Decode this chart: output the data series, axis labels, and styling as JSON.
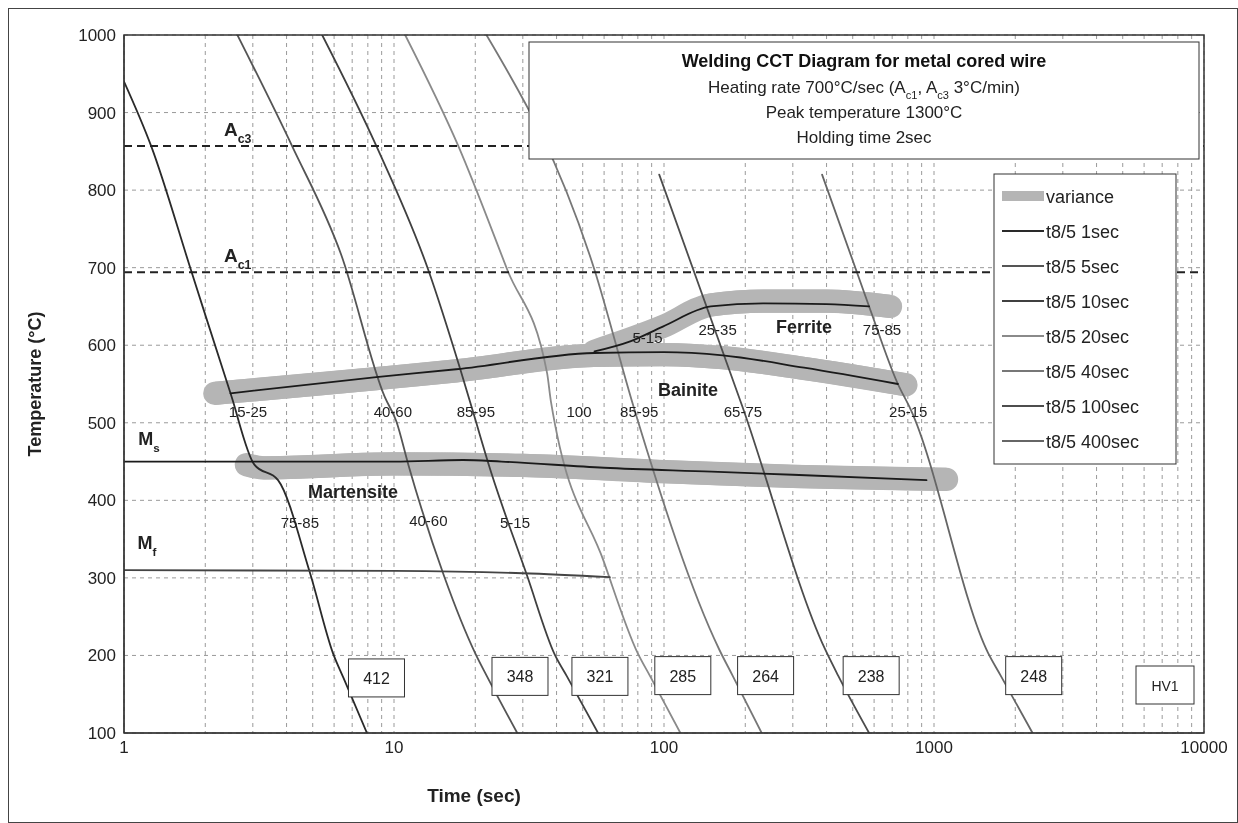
{
  "chart_data": {
    "type": "line",
    "title": "Welding CCT Diagram for metal cored wire",
    "subtitle": "Heating rate 700°C/sec (A$_{c1}$, A$_{c3}$ 3°C/min)\nPeak temperature 1300°C\nHolding time 2sec",
    "xlabel": "Time (sec)",
    "ylabel": "Temperature (°C)",
    "log": "x",
    "xlim": [
      1,
      10000
    ],
    "ylim": [
      100,
      1000
    ],
    "xticks": [
      1,
      {
        "value": 2,
        "label": null
      },
      {
        "value": 3,
        "label": null
      },
      {
        "value": 4,
        "label": null
      },
      {
        "value": 5,
        "label": null
      },
      {
        "value": 6,
        "label": null
      },
      {
        "value": 7,
        "label": null
      },
      {
        "value": 8,
        "label": null
      },
      {
        "value": 9,
        "label": null
      },
      10,
      {
        "value": 20,
        "label": null
      },
      {
        "value": 30,
        "label": null
      },
      {
        "value": 40,
        "label": null
      },
      {
        "value": 50,
        "label": null
      },
      {
        "value": 60,
        "label": null
      },
      {
        "value": 70,
        "label": null
      },
      {
        "value": 80,
        "label": null
      },
      {
        "value": 90,
        "label": null
      },
      100,
      {
        "value": 200,
        "label": null
      },
      {
        "value": 300,
        "label": null
      },
      {
        "value": 400,
        "label": null
      },
      {
        "value": 500,
        "label": null
      },
      {
        "value": 600,
        "label": null
      },
      {
        "value": 700,
        "label": null
      },
      {
        "value": 800,
        "label": null
      },
      {
        "value": 900,
        "label": null
      },
      1000,
      {
        "value": 2000,
        "label": null
      },
      {
        "value": 3000,
        "label": null
      },
      {
        "value": 4000,
        "label": null
      },
      {
        "value": 5000,
        "label": null
      },
      {
        "value": 6000,
        "label": null
      },
      {
        "value": 7000,
        "label": null
      },
      {
        "value": 8000,
        "label": null
      },
      {
        "value": 9000,
        "label": null
      },
      10000
    ],
    "yticks": [
      100,
      200,
      300,
      400,
      500,
      600,
      700,
      800,
      900,
      1000
    ],
    "grid": true,
    "legend": "top right",
    "series": [
      {
        "name": "variance",
        "color": "#b5b5b5",
        "x": [
          55,
          99,
          149,
          233,
          400,
          690,
          null,
          2.17,
          8.6,
          17,
          55,
          100,
          165,
          330,
          787,
          null,
          2.84,
          3.3,
          10,
          30,
          100,
          300,
          1113
        ],
        "values": [
          592,
          624,
          652,
          657,
          657,
          650,
          null,
          538,
          557,
          567,
          587,
          588,
          584,
          570,
          549,
          null,
          446,
          442,
          447,
          445,
          437,
          431,
          427
        ],
        "lower": [
          577,
          609,
          637,
          642,
          642,
          635,
          null,
          523,
          542,
          552,
          572,
          573,
          569,
          555,
          534,
          null,
          431,
          427,
          432,
          430,
          422,
          416,
          412
        ],
        "upper": [
          607,
          639,
          667,
          672,
          672,
          665,
          null,
          553,
          572,
          582,
          602,
          603,
          599,
          585,
          564,
          null,
          461,
          457,
          462,
          460,
          452,
          446,
          442
        ]
      },
      {
        "name": "t8/5 1sec",
        "color": "#2a2a2a",
        "x": [
          1,
          1.26,
          1.77,
          2.48,
          3.04,
          3.72,
          4.87,
          5.97,
          6.5,
          7.94
        ],
        "values": [
          940,
          857,
          697,
          538,
          446,
          426,
          308,
          201,
          171,
          100
        ]
      },
      {
        "name": "t8/5 5sec",
        "color": "#555555",
        "x": [
          2.63,
          4.19,
          6.37,
          9.25,
          10.2,
          11.3,
          15.3,
          20.1,
          22.1,
          28.6
        ],
        "values": [
          1000,
          857,
          717,
          533,
          502,
          446,
          303,
          201,
          173,
          100
        ]
      },
      {
        "name": "t8/5 10sec",
        "color": "#404040",
        "x": [
          5.42,
          8.6,
          13.4,
          17.6,
          20.1,
          22.2,
          31.1,
          39.4,
          43.7,
          57
        ],
        "values": [
          1000,
          857,
          697,
          569,
          502,
          451,
          303,
          201,
          173,
          100
        ]
      },
      {
        "name": "t8/5 20sec",
        "color": "#8a8a8a",
        "x": [
          11,
          17.3,
          26.3,
          36.9,
          38.1,
          60,
          79.9,
          88.6,
          115
        ],
        "values": [
          1000,
          857,
          697,
          564,
          528,
          320,
          203,
          174,
          100
        ]
      },
      {
        "name": "t8/5 40sec",
        "color": "#777777",
        "x": [
          22,
          55.3,
          77.4,
          160,
          179.5,
          230
        ],
        "values": [
          1000,
          697,
          519,
          208,
          174,
          100
        ]
      },
      {
        "name": "t8/5 100sec",
        "color": "#4d4d4d",
        "x": [
          96,
          196,
          395,
          441.6,
          575
        ],
        "values": [
          820,
          519,
          208,
          174,
          100
        ]
      },
      {
        "name": "t8/5 400sec",
        "color": "#666666",
        "x": [
          385,
          575,
          735,
          820,
          1587,
          1766,
          2318
        ],
        "values": [
          820,
          650,
          550,
          517,
          203,
          174,
          100
        ]
      },
      {
        "color": "#1a1a1a",
        "x": [
          55.3,
          75,
          99,
          149,
          233,
          400,
          575
        ],
        "values": [
          592,
          605,
          624,
          650,
          654,
          653,
          650
        ]
      },
      {
        "color": "#1a1a1a",
        "x": [
          2.48,
          8.6,
          17,
          55.3,
          100,
          165,
          330,
          735
        ],
        "values": [
          538,
          559,
          569,
          590,
          591,
          587,
          571,
          550
        ]
      },
      {
        "color": "#1a1a1a",
        "x": [
          1,
          3.04,
          10,
          18,
          25,
          60,
          150,
          300,
          938
        ],
        "values": [
          450,
          450,
          450,
          452,
          450,
          442,
          437,
          433,
          426
        ]
      },
      {
        "color": "#444444",
        "x": [
          1,
          10,
          30,
          63
        ],
        "values": [
          310,
          309,
          306,
          301
        ]
      }
    ],
    "ref_lines": [
      {
        "axis": "y",
        "value": 857,
        "label": "A$_{c3}$",
        "color": "#222222",
        "line_style": "dashed"
      },
      {
        "axis": "y",
        "value": 694,
        "label": "A$_{c1}$",
        "color": "#222222",
        "line_style": "dashed"
      }
    ],
    "annotations": [
      {
        "text": "40-60",
        "x": 9.9,
        "y": 515
      },
      {
        "text": "85-95",
        "x": 20.1,
        "y": 515
      },
      {
        "text": "85-95",
        "x": 81,
        "y": 515
      },
      {
        "text": "65-75",
        "x": 196,
        "y": 515
      },
      {
        "text": "25-15",
        "x": 803,
        "y": 515
      },
      {
        "text": "5-15",
        "x": 86.9,
        "y": 610
      },
      {
        "text": "25-35",
        "x": 158,
        "y": 621
      },
      {
        "text": "75-85",
        "x": 642,
        "y": 621
      },
      {
        "text": "75-85",
        "x": 4.48,
        "y": 372
      },
      {
        "text": "40-60",
        "x": 13.4,
        "y": 375
      },
      {
        "text": "412",
        "x": 6.5,
        "y": 171
      },
      {
        "text": "348",
        "x": 22.1,
        "y": 173
      },
      {
        "text": "321",
        "x": 43.7,
        "y": 173
      },
      {
        "text": "285",
        "x": 88.6,
        "y": 174
      },
      {
        "text": "264",
        "x": 179.5,
        "y": 174
      },
      {
        "text": "238",
        "x": 441.6,
        "y": 174
      },
      {
        "text": "248",
        "x": 1766,
        "y": 174
      },
      "M$_{s}$",
      "M$_{f}$",
      "Ferrite",
      "Bainite",
      "Martensite",
      "15-25",
      "100",
      "5-15",
      "HV1"
    ]
  }
}
